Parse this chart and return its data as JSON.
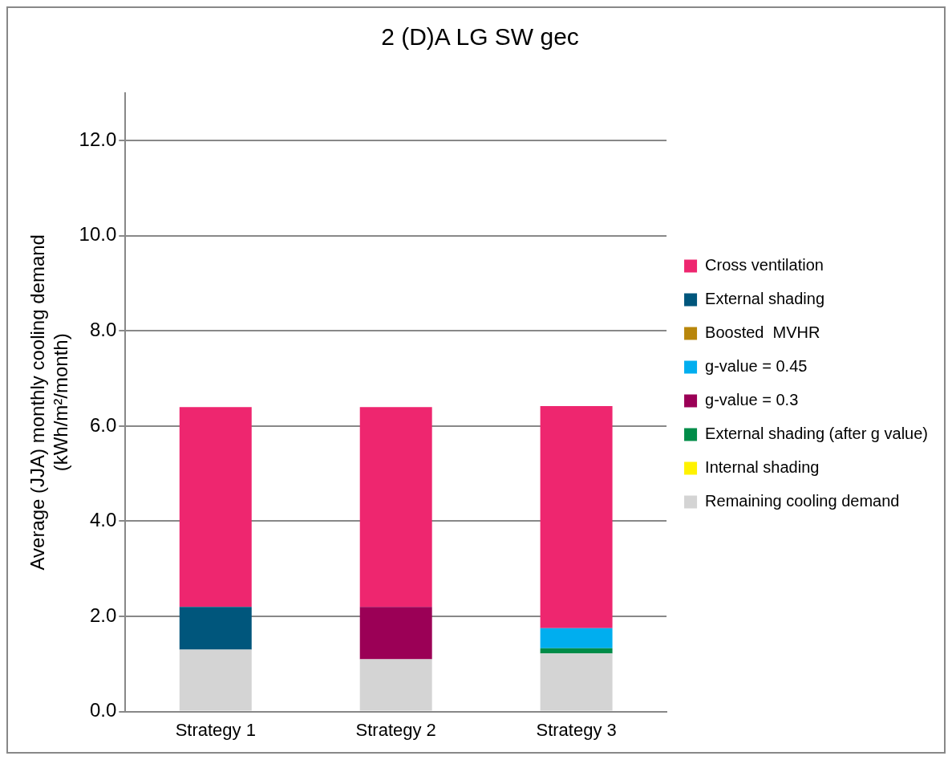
{
  "chart_data": {
    "type": "bar",
    "title": "2 (D)A LG SW gec",
    "ylabel": "Average (JJA) monthly cooling demand\n(kWh/m²/month)",
    "categories": [
      "Strategy 1",
      "Strategy 2",
      "Strategy 3"
    ],
    "stacked": true,
    "series": [
      {
        "name": "Remaining cooling demand",
        "color": "#d4d4d4",
        "values": [
          1.3,
          1.1,
          1.22
        ]
      },
      {
        "name": "Internal shading",
        "color": "#fff200",
        "values": [
          0,
          0,
          0
        ]
      },
      {
        "name": "External shading (after g value)",
        "color": "#008c48",
        "values": [
          0,
          0,
          0.11
        ]
      },
      {
        "name": "g-value = 0.3",
        "color": "#9b0056",
        "values": [
          0,
          1.1,
          0
        ]
      },
      {
        "name": "g-value = 0.45",
        "color": "#00aeef",
        "values": [
          0,
          0,
          0.42
        ]
      },
      {
        "name": "Boosted  MVHR",
        "color": "#b8860b",
        "values": [
          0,
          0,
          0
        ]
      },
      {
        "name": "External shading",
        "color": "#00567c",
        "values": [
          0.9,
          0,
          0
        ]
      },
      {
        "name": "Cross ventilation",
        "color": "#ee266f",
        "values": [
          4.2,
          4.2,
          4.67
        ]
      }
    ],
    "ylim": [
      0,
      13
    ],
    "yticks": [
      {
        "value": 0,
        "label": "0.0"
      },
      {
        "value": 2,
        "label": "2.0"
      },
      {
        "value": 4,
        "label": "4.0"
      },
      {
        "value": 6,
        "label": "6.0"
      },
      {
        "value": 8,
        "label": "8.0"
      },
      {
        "value": 10,
        "label": "10.0"
      },
      {
        "value": 12,
        "label": "12.0"
      }
    ],
    "grid": "y",
    "legend": "right"
  }
}
